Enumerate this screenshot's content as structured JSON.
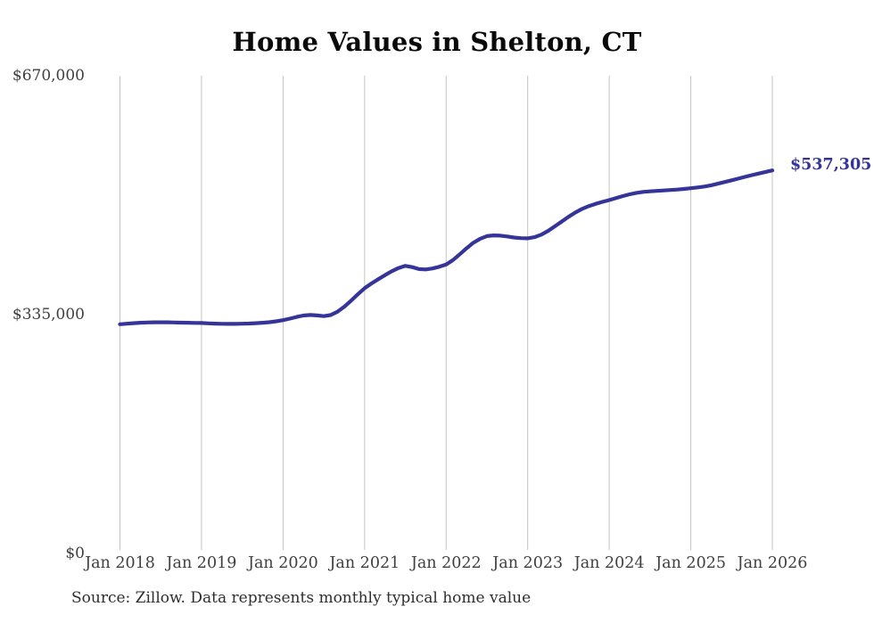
{
  "page": {
    "background_color": "#ffffff"
  },
  "header": {
    "title": "Home Values in Shelton, CT"
  },
  "footer": {
    "source_note": "Source: Zillow. Data represents monthly typical home value"
  },
  "colors": {
    "line": "#353599",
    "grid": "#c3c3c3",
    "title_text": "#0a0a0a",
    "axis_text": "#3f3f3f",
    "end_label_text": "#33339b",
    "source_text": "#2e2e2e"
  },
  "chart_data": {
    "type": "line",
    "title": "Home Values in Shelton, CT",
    "xlabel": "",
    "ylabel": "",
    "ylim": [
      0,
      670000
    ],
    "grid": "vertical-only",
    "legend": "none",
    "y_ticks": [
      {
        "value": 0,
        "label": "$0"
      },
      {
        "value": 335000,
        "label": "$335,000"
      },
      {
        "value": 670000,
        "label": "$670,000"
      }
    ],
    "x_tick_labels": [
      "Jan 2018",
      "Jan 2019",
      "Jan 2020",
      "Jan 2021",
      "Jan 2022",
      "Jan 2023",
      "Jan 2024",
      "Jan 2025",
      "Jan 2026"
    ],
    "final_value_label": "$537,305",
    "series": [
      {
        "name": "Monthly typical home value (USD)",
        "start_month": "Jan 2018",
        "end_month": "Jan 2026",
        "interval": "monthly",
        "values": [
          321500,
          322300,
          323000,
          323600,
          324000,
          324200,
          324300,
          324200,
          324000,
          323800,
          323600,
          323400,
          323200,
          322800,
          322400,
          322100,
          322000,
          322000,
          322200,
          322500,
          323000,
          323600,
          324400,
          325600,
          327200,
          329400,
          331700,
          333700,
          334500,
          333900,
          332900,
          334400,
          339000,
          346000,
          354500,
          363500,
          372000,
          378600,
          384600,
          390400,
          395900,
          400400,
          403400,
          401600,
          398900,
          398400,
          399700,
          402100,
          405300,
          411500,
          419600,
          428000,
          435700,
          441400,
          445100,
          446100,
          445800,
          444600,
          443100,
          442300,
          442000,
          443600,
          447100,
          452400,
          458900,
          465500,
          472100,
          478100,
          483200,
          487200,
          490400,
          493100,
          495600,
          498500,
          501300,
          503800,
          505800,
          507100,
          507900,
          508500,
          509100,
          509700,
          510400,
          511300,
          512300,
          513400,
          514600,
          516400,
          518600,
          521000,
          523400,
          525800,
          528200,
          530600,
          532900,
          535100,
          537305
        ]
      }
    ]
  }
}
